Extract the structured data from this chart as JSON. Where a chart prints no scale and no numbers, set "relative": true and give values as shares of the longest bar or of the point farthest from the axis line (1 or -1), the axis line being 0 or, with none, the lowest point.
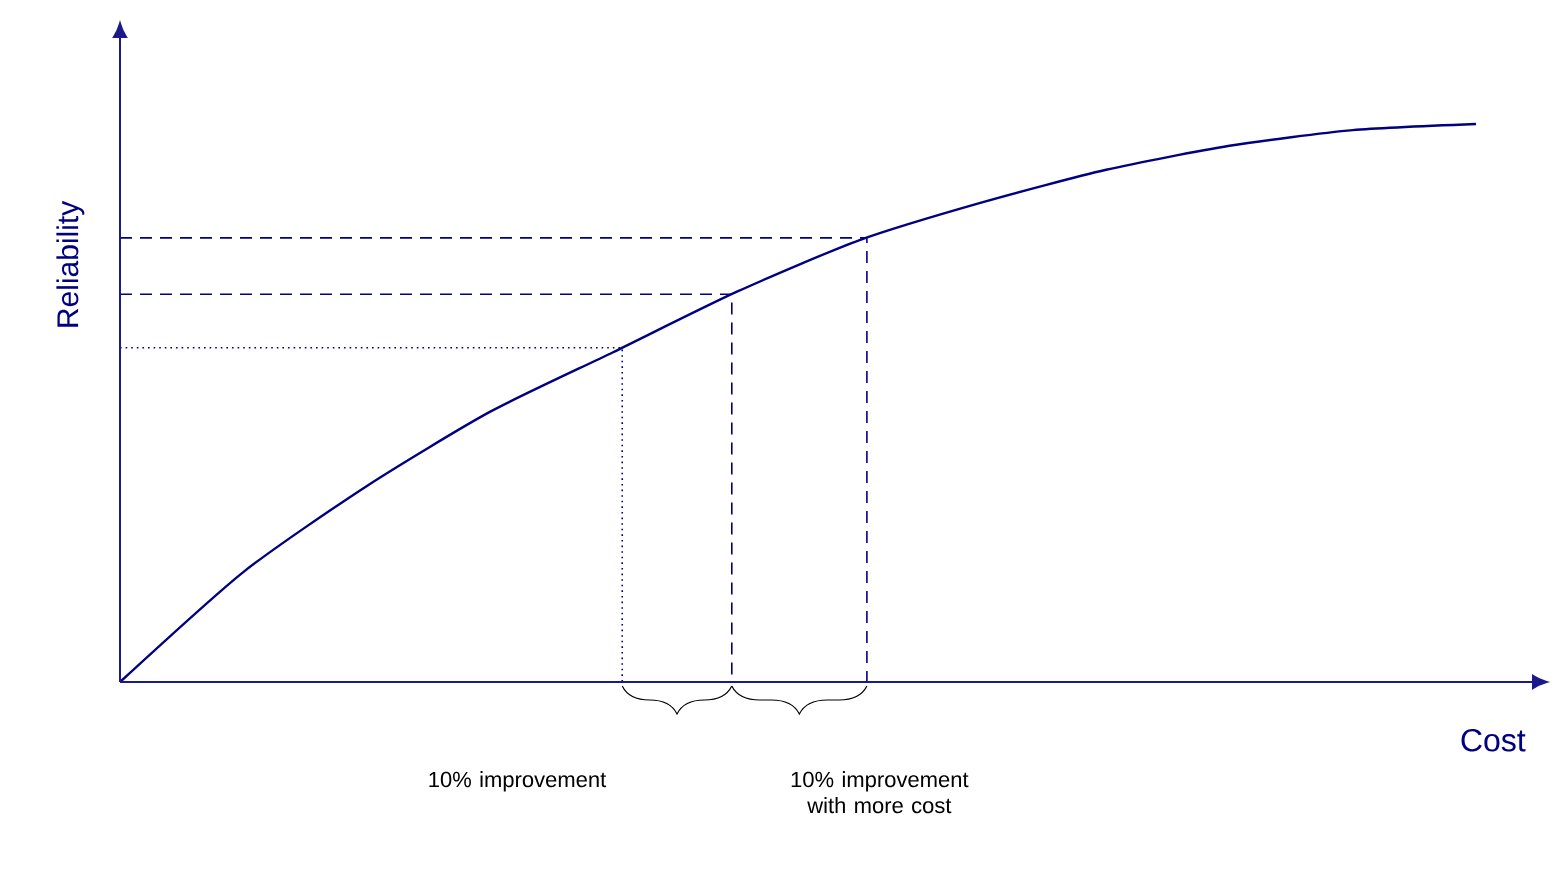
{
  "chart_data": {
    "type": "line",
    "relative": true,
    "xlabel": "Cost",
    "ylabel": "Reliability",
    "categories": [
      null,
      null,
      null,
      null,
      null,
      null,
      null,
      null,
      null,
      null,
      null,
      null
    ],
    "series": [
      {
        "color": "#000080",
        "values": [
          0,
          0.197,
          0.351,
          0.484,
          0.591,
          0.699,
          0.792,
          0.86,
          0.918,
          0.961,
          0.989,
          1.0
        ]
      }
    ],
    "ref_lines": [
      {
        "axis": "y",
        "value": 0.599,
        "line_style": "dotted"
      },
      {
        "axis": "y",
        "value": 0.695,
        "line_style": "dashed"
      },
      {
        "axis": "y",
        "value": 0.796,
        "line_style": "dashed"
      }
    ],
    "annotations": [
      "10% improvement",
      "10% improvement with more cost"
    ]
  }
}
